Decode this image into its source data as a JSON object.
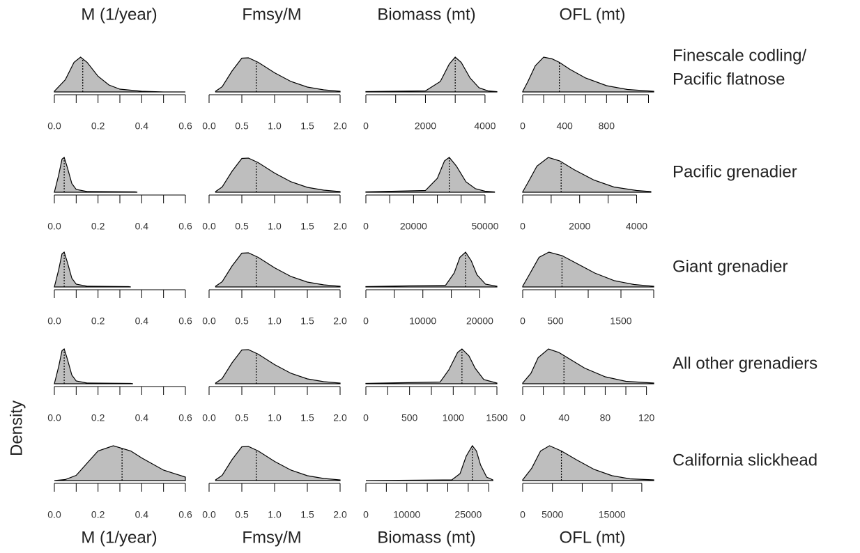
{
  "column_titles": [
    "M (1/year)",
    "Fmsy/M",
    "Biomass (mt)",
    "OFL (mt)"
  ],
  "row_titles": [
    [
      "Finescale codling/",
      "Pacific flatnose"
    ],
    [
      "Pacific grenadier"
    ],
    [
      "Giant grenadier"
    ],
    [
      "All other grenadiers"
    ],
    [
      "California slickhead"
    ]
  ],
  "y_label": "Density",
  "chart_data": [
    {
      "type": "density",
      "color": "#bebebe",
      "xlim": [
        0,
        0.6
      ],
      "ylim": [
        0,
        1
      ],
      "xticks": [
        {
          "value": 0,
          "label": "0.0"
        },
        0.2,
        0.4,
        0.6
      ],
      "xminor": [
        0.1,
        0.3,
        0.5
      ],
      "marker": 0.13,
      "x": [
        0,
        0.05,
        0.09,
        0.12,
        0.15,
        0.2,
        0.25,
        0.3,
        0.4,
        0.5,
        0.6
      ],
      "values": [
        0.02,
        0.35,
        0.85,
        1.0,
        0.85,
        0.45,
        0.2,
        0.08,
        0.02,
        0,
        0
      ]
    },
    {
      "type": "density",
      "color": "#bebebe",
      "xlim": [
        0,
        2
      ],
      "ylim": [
        0,
        1
      ],
      "xticks": [
        {
          "value": 0,
          "label": "0.0"
        },
        0.5,
        {
          "value": 1,
          "label": "1.0"
        },
        1.5,
        {
          "value": 2,
          "label": "2.0"
        }
      ],
      "xminor": [],
      "marker": 0.72,
      "x": [
        0.1,
        0.2,
        0.35,
        0.5,
        0.6,
        0.75,
        1.0,
        1.25,
        1.5,
        1.75,
        2.0
      ],
      "values": [
        0.02,
        0.15,
        0.6,
        0.97,
        0.98,
        0.85,
        0.55,
        0.3,
        0.14,
        0.06,
        0.02
      ]
    },
    {
      "type": "density",
      "color": "#bebebe",
      "xlim": [
        0,
        4400
      ],
      "ylim": [
        0,
        1
      ],
      "xticks": [
        0,
        2000,
        4000
      ],
      "xminor": [
        1000,
        3000
      ],
      "marker": 3000,
      "x": [
        0,
        2000,
        2500,
        2800,
        3000,
        3200,
        3500,
        3800,
        4100,
        4400
      ],
      "values": [
        0.01,
        0.03,
        0.3,
        0.8,
        1.0,
        0.85,
        0.4,
        0.12,
        0.03,
        0.01
      ]
    },
    {
      "type": "density",
      "color": "#bebebe",
      "xlim": [
        0,
        1250
      ],
      "ylim": [
        0,
        1
      ],
      "xticks": [
        0,
        400,
        800
      ],
      "xminor": [
        200,
        600,
        1000,
        1200
      ],
      "marker": 350,
      "x": [
        0,
        50,
        120,
        200,
        280,
        350,
        450,
        600,
        800,
        1000,
        1250
      ],
      "values": [
        0.01,
        0.3,
        0.75,
        1.0,
        0.95,
        0.85,
        0.65,
        0.4,
        0.18,
        0.07,
        0.02
      ]
    },
    {
      "type": "density",
      "color": "#bebebe",
      "xlim": [
        0,
        0.6
      ],
      "ylim": [
        0,
        1
      ],
      "xticks": [
        {
          "value": 0,
          "label": "0.0"
        },
        0.2,
        0.4,
        0.6
      ],
      "xminor": [
        0.1,
        0.3,
        0.5
      ],
      "marker": 0.045,
      "x": [
        0,
        0.02,
        0.035,
        0.045,
        0.06,
        0.08,
        0.1,
        0.15,
        0.37,
        0.38
      ],
      "values": [
        0,
        0.5,
        0.95,
        1.0,
        0.7,
        0.25,
        0.08,
        0.02,
        0.01,
        0
      ]
    },
    {
      "type": "density",
      "color": "#bebebe",
      "xlim": [
        0,
        2
      ],
      "ylim": [
        0,
        1
      ],
      "xticks": [
        {
          "value": 0,
          "label": "0.0"
        },
        0.5,
        {
          "value": 1,
          "label": "1.0"
        },
        1.5,
        {
          "value": 2,
          "label": "2.0"
        }
      ],
      "xminor": [],
      "marker": 0.72,
      "x": [
        0.1,
        0.2,
        0.35,
        0.5,
        0.6,
        0.75,
        1.0,
        1.25,
        1.5,
        1.75,
        2.0
      ],
      "values": [
        0.02,
        0.15,
        0.6,
        0.97,
        0.98,
        0.85,
        0.55,
        0.3,
        0.14,
        0.06,
        0.02
      ]
    },
    {
      "type": "density",
      "color": "#bebebe",
      "xlim": [
        0,
        55000
      ],
      "ylim": [
        0,
        1
      ],
      "xticks": [
        0,
        20000,
        50000
      ],
      "xminor": [
        10000,
        30000,
        40000
      ],
      "marker": 35000,
      "x": [
        0,
        25000,
        30000,
        33000,
        35000,
        38000,
        42000,
        46000,
        50000,
        54000
      ],
      "values": [
        0.01,
        0.05,
        0.4,
        0.9,
        1.0,
        0.75,
        0.3,
        0.1,
        0.03,
        0.01
      ]
    },
    {
      "type": "density",
      "color": "#bebebe",
      "xlim": [
        0,
        4600
      ],
      "ylim": [
        0,
        1
      ],
      "xticks": [
        0,
        2000,
        4000
      ],
      "xminor": [
        1000,
        3000
      ],
      "marker": 1350,
      "x": [
        0,
        200,
        500,
        900,
        1300,
        1800,
        2500,
        3200,
        4000,
        4500
      ],
      "values": [
        0.01,
        0.3,
        0.75,
        1.0,
        0.9,
        0.65,
        0.35,
        0.15,
        0.05,
        0.02
      ]
    },
    {
      "type": "density",
      "color": "#bebebe",
      "xlim": [
        0,
        0.6
      ],
      "ylim": [
        0,
        1
      ],
      "xticks": [
        {
          "value": 0,
          "label": "0.0"
        },
        0.2,
        0.4,
        0.6
      ],
      "xminor": [
        0.1,
        0.3,
        0.5
      ],
      "marker": 0.045,
      "x": [
        0,
        0.02,
        0.035,
        0.045,
        0.06,
        0.08,
        0.1,
        0.15,
        0.34,
        0.35
      ],
      "values": [
        0,
        0.5,
        0.95,
        1.0,
        0.7,
        0.25,
        0.08,
        0.02,
        0.01,
        0
      ]
    },
    {
      "type": "density",
      "color": "#bebebe",
      "xlim": [
        0,
        2
      ],
      "ylim": [
        0,
        1
      ],
      "xticks": [
        {
          "value": 0,
          "label": "0.0"
        },
        0.5,
        {
          "value": 1,
          "label": "1.0"
        },
        1.5,
        {
          "value": 2,
          "label": "2.0"
        }
      ],
      "xminor": [],
      "marker": 0.72,
      "x": [
        0.1,
        0.2,
        0.35,
        0.5,
        0.6,
        0.75,
        1.0,
        1.25,
        1.5,
        1.75,
        2.0
      ],
      "values": [
        0.02,
        0.15,
        0.6,
        0.97,
        0.98,
        0.85,
        0.55,
        0.3,
        0.14,
        0.06,
        0.02
      ]
    },
    {
      "type": "density",
      "color": "#bebebe",
      "xlim": [
        0,
        23000
      ],
      "ylim": [
        0,
        1
      ],
      "xticks": [
        0,
        10000,
        20000
      ],
      "xminor": [
        5000,
        15000
      ],
      "marker": 17500,
      "x": [
        0,
        14000,
        15500,
        16500,
        17500,
        18500,
        19500,
        21000,
        23000
      ],
      "values": [
        0.01,
        0.05,
        0.4,
        0.85,
        1.0,
        0.75,
        0.35,
        0.08,
        0.02
      ]
    },
    {
      "type": "density",
      "color": "#bebebe",
      "xlim": [
        0,
        2000
      ],
      "ylim": [
        0,
        1
      ],
      "xticks": [
        0,
        500,
        1500
      ],
      "xminor": [
        1000,
        2000
      ],
      "marker": 600,
      "x": [
        0,
        100,
        250,
        400,
        600,
        800,
        1100,
        1400,
        1700,
        2000
      ],
      "values": [
        0.02,
        0.35,
        0.85,
        1.0,
        0.9,
        0.7,
        0.4,
        0.18,
        0.07,
        0.02
      ]
    },
    {
      "type": "density",
      "color": "#bebebe",
      "xlim": [
        0,
        0.6
      ],
      "ylim": [
        0,
        1
      ],
      "xticks": [
        {
          "value": 0,
          "label": "0.0"
        },
        0.2,
        0.4,
        0.6
      ],
      "xminor": [
        0.1,
        0.3,
        0.5
      ],
      "marker": 0.045,
      "x": [
        0,
        0.02,
        0.035,
        0.045,
        0.06,
        0.08,
        0.1,
        0.15,
        0.35,
        0.36
      ],
      "values": [
        0,
        0.5,
        0.95,
        1.0,
        0.7,
        0.25,
        0.08,
        0.02,
        0.01,
        0
      ]
    },
    {
      "type": "density",
      "color": "#bebebe",
      "xlim": [
        0,
        2
      ],
      "ylim": [
        0,
        1
      ],
      "xticks": [
        {
          "value": 0,
          "label": "0.0"
        },
        0.5,
        {
          "value": 1,
          "label": "1.0"
        },
        1.5,
        {
          "value": 2,
          "label": "2.0"
        }
      ],
      "xminor": [],
      "marker": 0.72,
      "x": [
        0.1,
        0.2,
        0.35,
        0.5,
        0.6,
        0.75,
        1.0,
        1.25,
        1.5,
        1.75,
        2.0
      ],
      "values": [
        0.02,
        0.15,
        0.6,
        0.97,
        0.98,
        0.85,
        0.55,
        0.3,
        0.14,
        0.06,
        0.02
      ]
    },
    {
      "type": "density",
      "color": "#bebebe",
      "xlim": [
        0,
        1500
      ],
      "ylim": [
        0,
        1
      ],
      "xticks": [
        0,
        500,
        1000,
        1500
      ],
      "xminor": [
        250,
        750,
        1250
      ],
      "marker": 1100,
      "x": [
        0,
        850,
        950,
        1050,
        1100,
        1180,
        1250,
        1350,
        1500
      ],
      "values": [
        0.01,
        0.05,
        0.4,
        0.9,
        1.0,
        0.8,
        0.45,
        0.12,
        0.02
      ]
    },
    {
      "type": "density",
      "color": "#bebebe",
      "xlim": [
        0,
        127
      ],
      "ylim": [
        0,
        1
      ],
      "xticks": [
        0,
        40,
        80,
        120
      ],
      "xminor": [
        20,
        60,
        100
      ],
      "marker": 40,
      "x": [
        0,
        8,
        15,
        25,
        35,
        45,
        60,
        80,
        100,
        127
      ],
      "values": [
        0.02,
        0.3,
        0.75,
        1.0,
        0.9,
        0.72,
        0.45,
        0.2,
        0.07,
        0.02
      ]
    },
    {
      "type": "density",
      "color": "#bebebe",
      "xlim": [
        0,
        0.6
      ],
      "ylim": [
        0,
        1
      ],
      "xticks": [
        {
          "value": 0,
          "label": "0.0"
        },
        0.2,
        0.4,
        0.6
      ],
      "xminor": [
        0.1,
        0.3,
        0.5
      ],
      "marker": 0.31,
      "x": [
        0,
        0.05,
        0.1,
        0.15,
        0.2,
        0.27,
        0.35,
        0.4,
        0.5,
        0.6
      ],
      "values": [
        0,
        0.03,
        0.15,
        0.5,
        0.85,
        1.0,
        0.85,
        0.65,
        0.3,
        0.1
      ]
    },
    {
      "type": "density",
      "color": "#bebebe",
      "xlim": [
        0,
        2
      ],
      "ylim": [
        0,
        1
      ],
      "xticks": [
        {
          "value": 0,
          "label": "0.0"
        },
        0.5,
        {
          "value": 1,
          "label": "1.0"
        },
        1.5,
        {
          "value": 2,
          "label": "2.0"
        }
      ],
      "xminor": [],
      "marker": 0.72,
      "x": [
        0.1,
        0.2,
        0.35,
        0.5,
        0.6,
        0.75,
        1.0,
        1.25,
        1.5,
        1.75,
        2.0
      ],
      "values": [
        0.02,
        0.15,
        0.6,
        0.97,
        0.98,
        0.85,
        0.55,
        0.3,
        0.14,
        0.06,
        0.02
      ]
    },
    {
      "type": "density",
      "color": "#bebebe",
      "xlim": [
        0,
        32000
      ],
      "ylim": [
        0,
        1
      ],
      "xticks": [
        0,
        10000,
        25000
      ],
      "xminor": [
        5000,
        15000,
        20000,
        30000
      ],
      "marker": 26000,
      "x": [
        0,
        21000,
        23000,
        24500,
        26000,
        27000,
        28000,
        29500,
        31000
      ],
      "values": [
        0,
        0.02,
        0.2,
        0.7,
        1.0,
        0.85,
        0.45,
        0.1,
        0.02
      ]
    },
    {
      "type": "density",
      "color": "#bebebe",
      "xlim": [
        0,
        22000
      ],
      "ylim": [
        0,
        1
      ],
      "xticks": [
        0,
        5000,
        15000
      ],
      "xminor": [
        10000,
        20000
      ],
      "marker": 6500,
      "x": [
        0,
        1500,
        3000,
        4500,
        6500,
        9000,
        12000,
        15000,
        18000,
        22000
      ],
      "values": [
        0.02,
        0.35,
        0.85,
        1.0,
        0.85,
        0.6,
        0.32,
        0.14,
        0.05,
        0.02
      ]
    }
  ]
}
